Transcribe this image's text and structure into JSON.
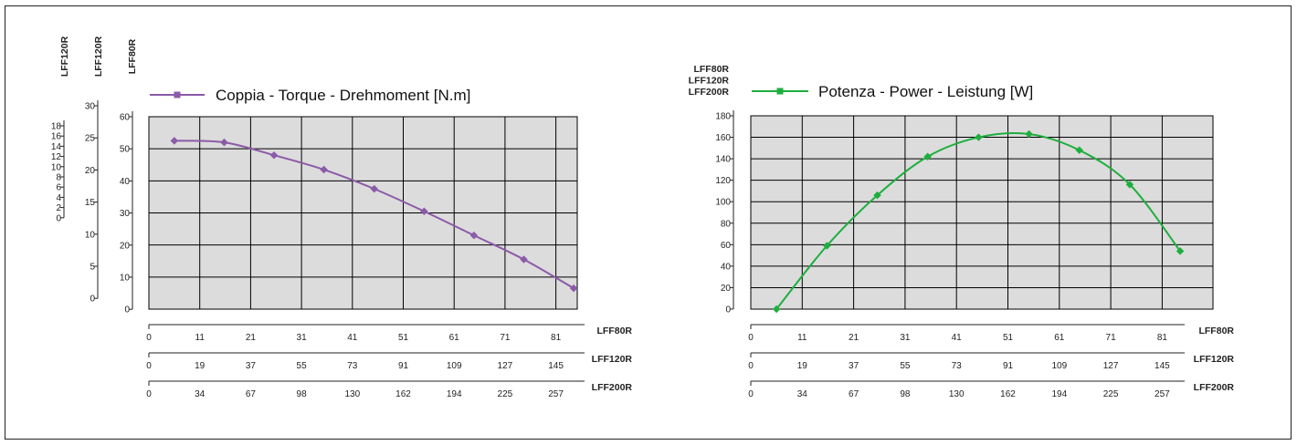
{
  "colors": {
    "torque": "#8b5aa8",
    "power": "#1fae3e",
    "plot_bg": "#dcdcdc",
    "grid": "#000000"
  },
  "x_axes": [
    {
      "name": "LFF80R",
      "ticks": [
        "0",
        "11",
        "21",
        "31",
        "41",
        "51",
        "61",
        "71",
        "81"
      ]
    },
    {
      "name": "LFF120R",
      "ticks": [
        "0",
        "19",
        "37",
        "55",
        "73",
        "91",
        "109",
        "127",
        "145"
      ]
    },
    {
      "name": "LFF200R",
      "ticks": [
        "0",
        "34",
        "67",
        "98",
        "130",
        "162",
        "194",
        "225",
        "257"
      ]
    }
  ],
  "chart_data": [
    {
      "type": "line",
      "legend": "Coppia - Torque - Drehmoment [N.m]",
      "marker": "square",
      "y_axes": [
        {
          "name": "LFF120R",
          "ticks": [
            "0",
            "2",
            "4",
            "6",
            "8",
            "10",
            "12",
            "14",
            "16",
            "18"
          ]
        },
        {
          "name": "LFF120R",
          "ticks": [
            "0",
            "5",
            "10",
            "15",
            "20",
            "25",
            "30"
          ]
        },
        {
          "name": "LFF80R",
          "ticks": [
            "0",
            "10",
            "20",
            "30",
            "40",
            "50",
            "60"
          ]
        }
      ],
      "ylim": [
        0,
        60
      ],
      "x": [
        5,
        14.8,
        24.6,
        34.4,
        44.3,
        54.1,
        63.9,
        73.7,
        83.5
      ],
      "y": [
        52.5,
        52,
        48,
        43.5,
        37.5,
        30.5,
        23,
        15.5,
        6.5
      ]
    },
    {
      "type": "line",
      "legend": "Potenza - Power - Leistung [W]",
      "marker": "square",
      "y_axes": [
        {
          "name": "LFF80R LFF120R LFF200R",
          "lines": [
            "LFF80R",
            "LFF120R",
            "LFF200R"
          ],
          "ticks": [
            "0",
            "20",
            "40",
            "60",
            "80",
            "100",
            "120",
            "140",
            "160",
            "180"
          ]
        }
      ],
      "ylim": [
        0,
        180
      ],
      "x": [
        5,
        14.8,
        24.6,
        34.4,
        44.3,
        54.1,
        63.9,
        73.7,
        83.5
      ],
      "y": [
        0,
        59,
        106,
        142,
        160,
        163,
        148,
        116,
        54
      ]
    }
  ]
}
